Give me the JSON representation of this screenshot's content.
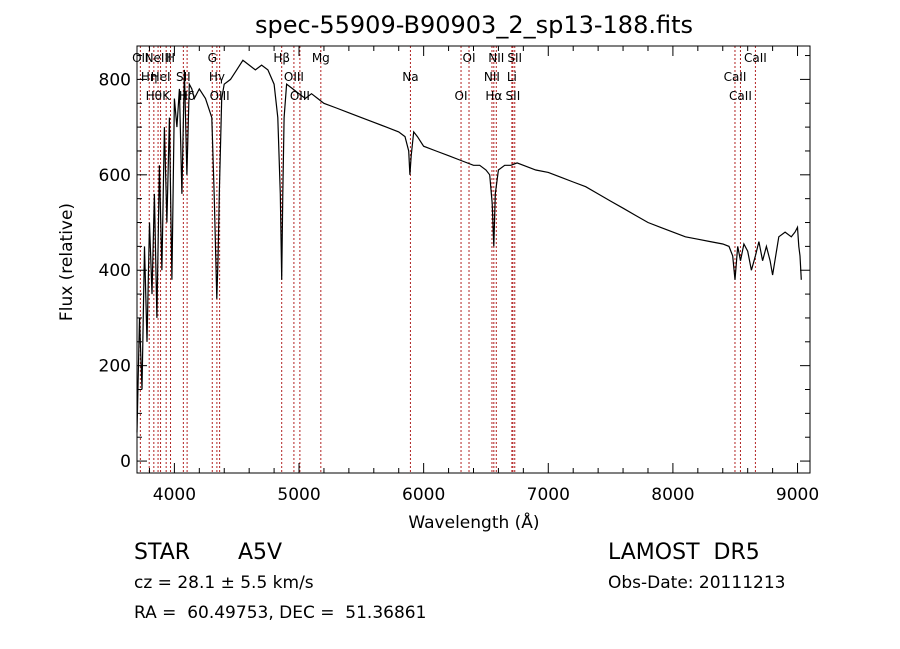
{
  "chart_data": {
    "type": "line",
    "title": "spec-55909-B90903_2_sp13-188.fits",
    "xlabel": "Wavelength (Å)",
    "ylabel": "Flux (relative)",
    "xlim": [
      3700,
      9100
    ],
    "ylim": [
      -25,
      870
    ],
    "xticks": [
      4000,
      5000,
      6000,
      7000,
      8000,
      9000
    ],
    "yticks": [
      0,
      200,
      400,
      600,
      800
    ],
    "grid": false,
    "series": [
      {
        "x": [
          3700,
          3720,
          3740,
          3760,
          3780,
          3800,
          3820,
          3840,
          3860,
          3880,
          3900,
          3920,
          3940,
          3960,
          3980,
          4000,
          4020,
          4040,
          4060,
          4080,
          4100,
          4120,
          4140,
          4160,
          4200,
          4250,
          4300,
          4320,
          4340,
          4350,
          4360,
          4380,
          4400,
          4450,
          4500,
          4550,
          4600,
          4650,
          4700,
          4750,
          4800,
          4830,
          4850,
          4861,
          4870,
          4880,
          4900,
          4950,
          5000,
          5050,
          5100,
          5150,
          5200,
          5300,
          5400,
          5500,
          5600,
          5700,
          5800,
          5850,
          5880,
          5890,
          5900,
          5920,
          5950,
          6000,
          6100,
          6200,
          6300,
          6400,
          6450,
          6500,
          6530,
          6550,
          6563,
          6575,
          6600,
          6650,
          6700,
          6750,
          6800,
          6900,
          7000,
          7100,
          7200,
          7300,
          7400,
          7500,
          7600,
          7700,
          7800,
          7900,
          8000,
          8100,
          8200,
          8300,
          8400,
          8450,
          8480,
          8498,
          8520,
          8542,
          8570,
          8600,
          8630,
          8662,
          8690,
          8720,
          8750,
          8780,
          8800,
          8850,
          8900,
          8950,
          8980,
          9000,
          9010,
          9020,
          9030
        ],
        "y": [
          60,
          300,
          150,
          450,
          250,
          500,
          350,
          560,
          300,
          620,
          400,
          700,
          500,
          720,
          380,
          760,
          700,
          780,
          560,
          820,
          600,
          790,
          780,
          760,
          780,
          760,
          720,
          550,
          340,
          420,
          560,
          760,
          790,
          800,
          820,
          840,
          830,
          820,
          830,
          820,
          790,
          720,
          560,
          380,
          560,
          720,
          790,
          780,
          770,
          760,
          770,
          760,
          750,
          740,
          730,
          720,
          710,
          700,
          690,
          680,
          650,
          600,
          640,
          690,
          680,
          660,
          650,
          640,
          630,
          620,
          620,
          610,
          600,
          540,
          450,
          560,
          610,
          620,
          620,
          625,
          620,
          610,
          605,
          595,
          585,
          575,
          560,
          545,
          530,
          515,
          500,
          490,
          480,
          470,
          465,
          460,
          455,
          450,
          430,
          380,
          450,
          420,
          455,
          440,
          400,
          430,
          460,
          420,
          450,
          420,
          390,
          470,
          480,
          470,
          480,
          490,
          450,
          430,
          380
        ]
      }
    ],
    "lines": [
      {
        "x": 3727,
        "label": "OII"
      },
      {
        "x": 3798,
        "label": "Hη"
      },
      {
        "x": 3835,
        "label": "Hθ"
      },
      {
        "x": 3869,
        "label": "NeIII"
      },
      {
        "x": 3889,
        "label": "HeI"
      },
      {
        "x": 3934,
        "label": "K"
      },
      {
        "x": 3969,
        "label": "H"
      },
      {
        "x": 4072,
        "label": "SII"
      },
      {
        "x": 4102,
        "label": "Hδ"
      },
      {
        "x": 4304,
        "label": "G"
      },
      {
        "x": 4341,
        "label": "Hγ"
      },
      {
        "x": 4363,
        "label": "OIII"
      },
      {
        "x": 4861,
        "label": "Hβ"
      },
      {
        "x": 4959,
        "label": "OIII"
      },
      {
        "x": 5007,
        "label": "OIII"
      },
      {
        "x": 5175,
        "label": "Mg"
      },
      {
        "x": 5894,
        "label": "Na"
      },
      {
        "x": 6300,
        "label": "OI"
      },
      {
        "x": 6364,
        "label": "OI"
      },
      {
        "x": 6548,
        "label": "NII"
      },
      {
        "x": 6563,
        "label": "Hα"
      },
      {
        "x": 6583,
        "label": "NII"
      },
      {
        "x": 6708,
        "label": "Li"
      },
      {
        "x": 6716,
        "label": "SII"
      },
      {
        "x": 6731,
        "label": "SII"
      },
      {
        "x": 8498,
        "label": "CaII"
      },
      {
        "x": 8542,
        "label": "CaII"
      },
      {
        "x": 8662,
        "label": "CaII"
      }
    ]
  },
  "info": {
    "class": "STAR",
    "subclass": "A5V",
    "survey": "LAMOST  DR5",
    "cz": "cz = 28.1 ± 5.5 km/s",
    "obs_date": "Obs-Date: 20111213",
    "coords": "RA =  60.49753, DEC =  51.36861"
  }
}
